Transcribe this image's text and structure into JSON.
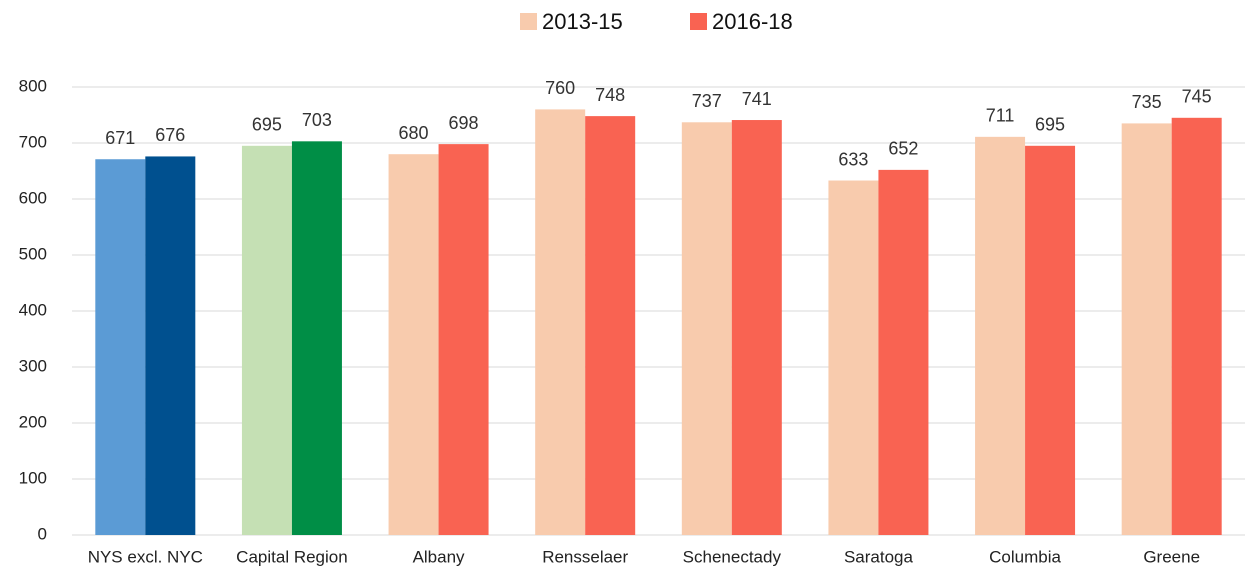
{
  "chart_data": {
    "type": "bar",
    "categories": [
      "NYS excl. NYC",
      "Capital Region",
      "Albany",
      "Rensselaer",
      "Schenectady",
      "Saratoga",
      "Columbia",
      "Greene"
    ],
    "series": [
      {
        "name": "2013-15",
        "color": "#f8cbad",
        "colors": [
          "#5b9bd5",
          "#c5e0b4",
          "#f8cbad",
          "#f8cbad",
          "#f8cbad",
          "#f8cbad",
          "#f8cbad",
          "#f8cbad"
        ],
        "values": [
          671,
          695,
          680,
          760,
          737,
          633,
          711,
          735
        ]
      },
      {
        "name": "2016-18",
        "color": "#f96352",
        "colors": [
          "#00508f",
          "#008e46",
          "#f96352",
          "#f96352",
          "#f96352",
          "#f96352",
          "#f96352",
          "#f96352"
        ],
        "values": [
          676,
          703,
          698,
          748,
          741,
          652,
          695,
          745
        ]
      }
    ],
    "ylim": [
      0,
      800
    ],
    "yticks": [
      0,
      100,
      200,
      300,
      400,
      500,
      600,
      700,
      800
    ],
    "grid": true,
    "legend": "top"
  }
}
